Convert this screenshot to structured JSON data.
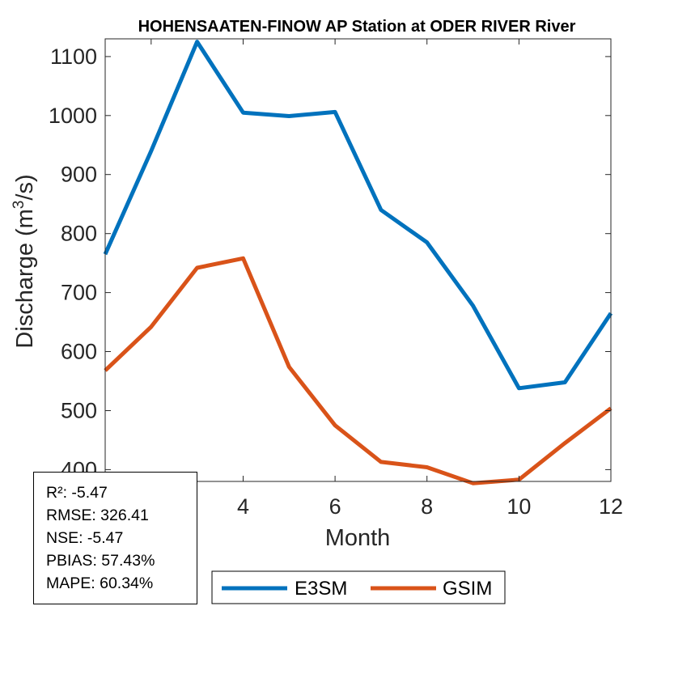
{
  "chart_data": {
    "type": "line",
    "title": "HOHENSAATEN-FINOW AP  Station at  ODER RIVER  River",
    "xlabel": "Month",
    "ylabel": "Discharge (m",
    "ylabel_sup": "3",
    "ylabel_end": "/s)",
    "x": [
      1,
      2,
      3,
      4,
      5,
      6,
      7,
      8,
      9,
      10,
      11,
      12
    ],
    "xlim": [
      1,
      12
    ],
    "ylim": [
      380,
      1130
    ],
    "xticks": [
      2,
      4,
      6,
      8,
      10,
      12
    ],
    "yticks": [
      400,
      500,
      600,
      700,
      800,
      900,
      1000,
      1100
    ],
    "grid": false,
    "legend_location": "bottom-outside",
    "series": [
      {
        "name": "E3SM",
        "color": "#0072BD",
        "values": [
          765,
          940,
          1125,
          1005,
          999,
          1006,
          840,
          785,
          678,
          538,
          548,
          665
        ]
      },
      {
        "name": "GSIM",
        "color": "#D95319",
        "values": [
          568,
          642,
          742,
          758,
          574,
          475,
          413,
          404,
          377,
          383,
          445,
          504
        ]
      }
    ]
  },
  "stats": {
    "r2": "R²: -5.47",
    "rmse": "RMSE: 326.41",
    "nse": "NSE: -5.47",
    "pbias": "PBIAS: 57.43%",
    "mape": "MAPE: 60.34%"
  }
}
